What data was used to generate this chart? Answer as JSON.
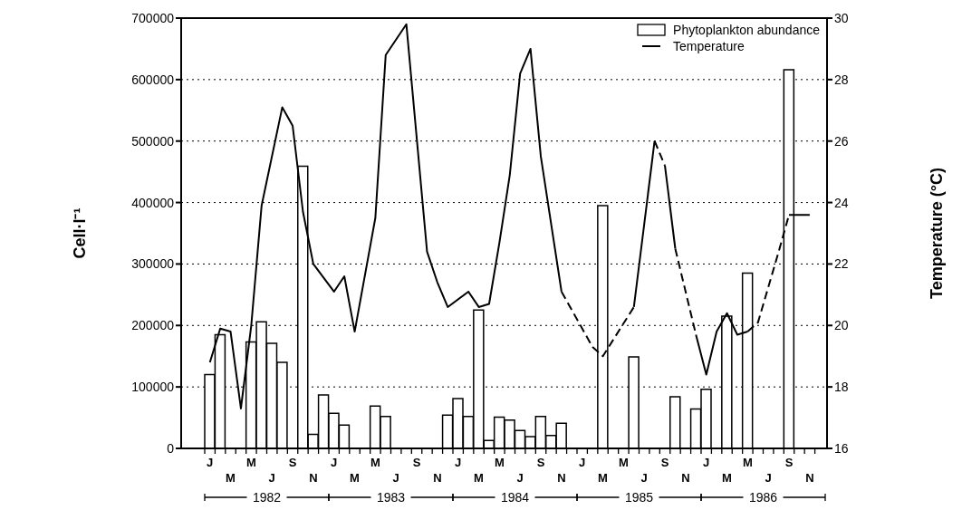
{
  "chart_data": {
    "type": "bar",
    "ylabel": "Cell·l⁻¹",
    "y2label": "Temperature (°C)",
    "categories": [
      "J",
      null,
      "M",
      null,
      "M",
      null,
      "J",
      null,
      "S",
      null,
      "N",
      null,
      "J",
      null,
      "M",
      null,
      "M",
      null,
      "J",
      null,
      "S",
      null,
      "N",
      null,
      "J",
      null,
      "M",
      null,
      "M",
      null,
      "J",
      null,
      "S",
      null,
      "N",
      null,
      "J",
      null,
      "M",
      null,
      "M",
      null,
      "J",
      null,
      "S",
      null,
      "N",
      null,
      "J",
      null,
      "M",
      null,
      "M",
      null,
      "J",
      null,
      "S",
      null,
      "N",
      null
    ],
    "series": [
      {
        "name": "Phytoplankton abundance",
        "color": "#ffffff",
        "values": [
          120000,
          185000,
          null,
          null,
          173000,
          206000,
          171000,
          140000,
          null,
          459000,
          23000,
          87000,
          57000,
          38000,
          null,
          null,
          69000,
          52000,
          null,
          null,
          null,
          null,
          null,
          54000,
          81000,
          52000,
          225000,
          13000,
          51000,
          46000,
          29000,
          19000,
          52000,
          21000,
          41000,
          null,
          null,
          null,
          395000,
          null,
          null,
          149000,
          null,
          null,
          null,
          84000,
          null,
          64000,
          96000,
          null,
          215000,
          null,
          285000,
          null,
          null,
          null,
          616000,
          null,
          null,
          null
        ]
      },
      {
        "name": "Temperature",
        "type": "line",
        "axis": "y2",
        "color": "#000000",
        "line_style": "solid",
        "values": [
          18.8,
          19.9,
          19.8,
          17.3,
          20.0,
          23.9,
          null,
          27.1,
          26.5,
          23.7,
          22.0,
          null,
          21.1,
          21.6,
          19.8,
          null,
          23.5,
          28.8,
          null,
          29.8,
          null,
          22.4,
          21.4,
          20.6,
          null,
          21.1,
          20.6,
          20.7,
          22.7,
          24.9,
          28.2,
          29.0,
          25.5,
          null,
          21.1,
          null,
          null,
          null,
          null,
          null,
          null,
          null,
          null,
          null,
          null,
          null,
          null,
          null,
          null,
          null,
          null,
          null,
          null,
          null,
          null,
          null,
          null,
          null,
          null,
          null
        ]
      },
      {
        "type": "line",
        "axis": "y2",
        "color": "#000000",
        "line_style": "dashed",
        "values": [
          null,
          null,
          null,
          null,
          null,
          null,
          null,
          null,
          null,
          null,
          null,
          null,
          null,
          null,
          null,
          null,
          null,
          null,
          null,
          null,
          null,
          null,
          null,
          null,
          null,
          null,
          null,
          null,
          null,
          null,
          null,
          null,
          null,
          null,
          21.1,
          null,
          null,
          19.3,
          19.0,
          null,
          null,
          20.6,
          null,
          null,
          null,
          null,
          null,
          null,
          null,
          null,
          null,
          null,
          null,
          null,
          null,
          null,
          null,
          null,
          null,
          null
        ]
      },
      {
        "type": "line",
        "axis": "y2",
        "color": "#000000",
        "line_style": "solid",
        "values": [
          null,
          null,
          null,
          null,
          null,
          null,
          null,
          null,
          null,
          null,
          null,
          null,
          null,
          null,
          null,
          null,
          null,
          null,
          null,
          null,
          null,
          null,
          null,
          null,
          null,
          null,
          null,
          null,
          null,
          null,
          null,
          null,
          null,
          null,
          null,
          null,
          null,
          null,
          null,
          null,
          null,
          20.6,
          null,
          26.0,
          null,
          null,
          null,
          null,
          null,
          null,
          null,
          null,
          null,
          null,
          null,
          null,
          null,
          null,
          null,
          null
        ]
      },
      {
        "type": "line",
        "axis": "y2",
        "color": "#000000",
        "line_style": "dashed",
        "values": [
          null,
          null,
          null,
          null,
          null,
          null,
          null,
          null,
          null,
          null,
          null,
          null,
          null,
          null,
          null,
          null,
          null,
          null,
          null,
          null,
          null,
          null,
          null,
          null,
          null,
          null,
          null,
          null,
          null,
          null,
          null,
          null,
          null,
          null,
          null,
          null,
          null,
          null,
          null,
          null,
          null,
          null,
          null,
          26.0,
          25.2,
          null,
          null,
          null,
          null,
          null,
          null,
          null,
          null,
          null,
          null,
          null,
          null,
          null,
          null,
          null
        ]
      },
      {
        "type": "line",
        "axis": "y2",
        "color": "#000000",
        "line_style": "solid",
        "values": [
          null,
          null,
          null,
          null,
          null,
          null,
          null,
          null,
          null,
          null,
          null,
          null,
          null,
          null,
          null,
          null,
          null,
          null,
          null,
          null,
          null,
          null,
          null,
          null,
          null,
          null,
          null,
          null,
          null,
          null,
          null,
          null,
          null,
          null,
          null,
          null,
          null,
          null,
          null,
          null,
          null,
          null,
          null,
          null,
          25.2,
          22.5,
          null,
          null,
          null,
          null,
          null,
          null,
          null,
          null,
          null,
          null,
          null,
          null,
          null,
          null
        ]
      },
      {
        "type": "line",
        "axis": "y2",
        "color": "#000000",
        "line_style": "dashed",
        "values": [
          null,
          null,
          null,
          null,
          null,
          null,
          null,
          null,
          null,
          null,
          null,
          null,
          null,
          null,
          null,
          null,
          null,
          null,
          null,
          null,
          null,
          null,
          null,
          null,
          null,
          null,
          null,
          null,
          null,
          null,
          null,
          null,
          null,
          null,
          null,
          null,
          null,
          null,
          null,
          null,
          null,
          null,
          null,
          null,
          null,
          22.5,
          null,
          19.7,
          null,
          null,
          null,
          null,
          null,
          null,
          null,
          null,
          null,
          null,
          null,
          null
        ]
      },
      {
        "type": "line",
        "axis": "y2",
        "color": "#000000",
        "line_style": "solid",
        "values": [
          null,
          null,
          null,
          null,
          null,
          null,
          null,
          null,
          null,
          null,
          null,
          null,
          null,
          null,
          null,
          null,
          null,
          null,
          null,
          null,
          null,
          null,
          null,
          null,
          null,
          null,
          null,
          null,
          null,
          null,
          null,
          null,
          null,
          null,
          null,
          null,
          null,
          null,
          null,
          null,
          null,
          null,
          null,
          null,
          null,
          null,
          null,
          19.7,
          18.4,
          19.8,
          20.4,
          19.7,
          19.8,
          null,
          null,
          null,
          null,
          null,
          null,
          null
        ]
      },
      {
        "type": "line",
        "axis": "y2",
        "color": "#000000",
        "line_style": "dashed",
        "values": [
          null,
          null,
          null,
          null,
          null,
          null,
          null,
          null,
          null,
          null,
          null,
          null,
          null,
          null,
          null,
          null,
          null,
          null,
          null,
          null,
          null,
          null,
          null,
          null,
          null,
          null,
          null,
          null,
          null,
          null,
          null,
          null,
          null,
          null,
          null,
          null,
          null,
          null,
          null,
          null,
          null,
          null,
          null,
          null,
          null,
          null,
          null,
          null,
          null,
          null,
          null,
          null,
          19.8,
          20.1,
          null,
          22.4,
          23.6,
          null,
          null,
          null
        ]
      },
      {
        "type": "line",
        "axis": "y2",
        "color": "#000000",
        "line_style": "solid",
        "values": [
          null,
          null,
          null,
          null,
          null,
          null,
          null,
          null,
          null,
          null,
          null,
          null,
          null,
          null,
          null,
          null,
          null,
          null,
          null,
          null,
          null,
          null,
          null,
          null,
          null,
          null,
          null,
          null,
          null,
          null,
          null,
          null,
          null,
          null,
          null,
          null,
          null,
          null,
          null,
          null,
          null,
          null,
          null,
          null,
          null,
          null,
          null,
          null,
          null,
          null,
          null,
          null,
          null,
          null,
          null,
          null,
          23.6,
          null,
          23.6,
          null
        ]
      }
    ],
    "ylim": [
      0,
      700000
    ],
    "yticks": [
      0,
      100000,
      200000,
      300000,
      400000,
      500000,
      600000,
      700000
    ],
    "y2lim": [
      16,
      30
    ],
    "y2ticks": [
      16,
      18,
      20,
      22,
      24,
      26,
      28,
      30
    ],
    "grid": "y",
    "legend": "top right",
    "annotations": [
      "1982",
      "1983",
      "1984",
      "1985",
      "1986"
    ]
  }
}
